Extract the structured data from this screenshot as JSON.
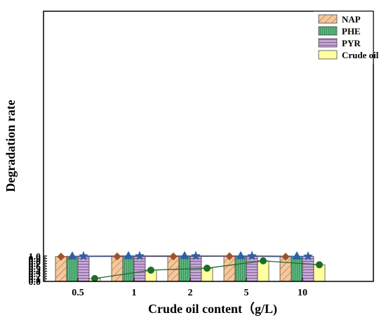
{
  "chart_data": {
    "type": "bar",
    "categories": [
      "0.5",
      "1",
      "2",
      "5",
      "10"
    ],
    "series": [
      {
        "name": "NAP",
        "values": [
          0.975,
          0.982,
          0.982,
          0.988,
          0.971
        ],
        "line_values": [
          0.975,
          0.982,
          0.982,
          0.988,
          0.971
        ],
        "color": "#f5c79a",
        "line_color": "#a0522d",
        "marker": "diamond",
        "pattern": "diag"
      },
      {
        "name": "PHE",
        "values": [
          0.99,
          1.0,
          1.0,
          1.0,
          0.99
        ],
        "line_values": [
          0.99,
          1.0,
          1.0,
          1.0,
          0.99
        ],
        "color": "#5cb87f",
        "line_color": "#2e5fa8",
        "marker": "triangle",
        "pattern": "vert"
      },
      {
        "name": "PYR",
        "values": [
          0.995,
          1.0,
          1.0,
          1.0,
          0.985
        ],
        "line_values": [
          0.995,
          1.0,
          1.0,
          1.0,
          0.985
        ],
        "color": "#c8a6d8",
        "line_color": "#2e5fa8",
        "marker": "star",
        "pattern": "horiz"
      },
      {
        "name": "Crude oil",
        "values": [
          0.113,
          0.443,
          0.52,
          0.81,
          0.655
        ],
        "line_values": [
          0.113,
          0.443,
          0.52,
          0.81,
          0.655
        ],
        "color": "#ffffa0",
        "line_color": "#1e6b2a",
        "marker": "circle",
        "pattern": "none"
      }
    ],
    "xlabel": "Crude oil content（g/L)",
    "ylabel": "Degradation rate",
    "ylim": [
      0,
      1.05
    ],
    "yticks": [
      "0.0",
      "0.1",
      "0.2",
      "0.3",
      "0.4",
      "0.5",
      "0.6",
      "0.7",
      "0.8",
      "0.9",
      "1.0"
    ],
    "grid": false,
    "legend_position": "top-right"
  }
}
